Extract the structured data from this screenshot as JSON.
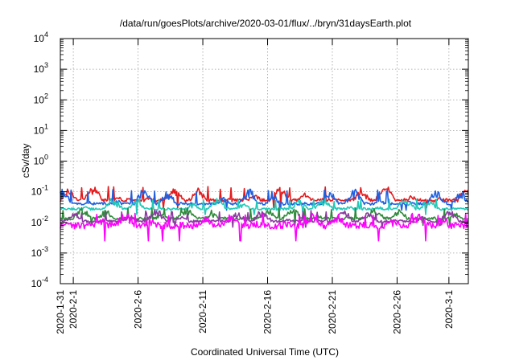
{
  "chart_data": {
    "type": "line",
    "title": "/data/run/goesPlots/archive/2020-03-01/flux/../bryn/31daysEarth.plot",
    "xlabel": "Coordinated Universal Time (UTC)",
    "ylabel": "cSv/day",
    "y_scale": "log",
    "ylim": [
      0.0001,
      10000
    ],
    "xlim": [
      "2020-01-31",
      "2020-03-02T12:00"
    ],
    "grid": true,
    "y_ticks": [
      {
        "base": "10",
        "exp": "-4",
        "value": 0.0001
      },
      {
        "base": "10",
        "exp": "-3",
        "value": 0.001
      },
      {
        "base": "10",
        "exp": "-2",
        "value": 0.01
      },
      {
        "base": "10",
        "exp": "-1",
        "value": 0.1
      },
      {
        "base": "10",
        "exp": "0",
        "value": 1
      },
      {
        "base": "10",
        "exp": "1",
        "value": 10
      },
      {
        "base": "10",
        "exp": "2",
        "value": 100
      },
      {
        "base": "10",
        "exp": "3",
        "value": 1000
      },
      {
        "base": "10",
        "exp": "4",
        "value": 10000
      }
    ],
    "x_ticks": [
      {
        "label": "2020-1-31",
        "date": "2020-01-31"
      },
      {
        "label": "2020-2-1",
        "date": "2020-02-01"
      },
      {
        "label": "2020-2-6",
        "date": "2020-02-06"
      },
      {
        "label": "2020-2-11",
        "date": "2020-02-11"
      },
      {
        "label": "2020-2-16",
        "date": "2020-02-16"
      },
      {
        "label": "2020-2-21",
        "date": "2020-02-21"
      },
      {
        "label": "2020-2-26",
        "date": "2020-02-26"
      },
      {
        "label": "2020-3-1",
        "date": "2020-03-01"
      }
    ],
    "series": [
      {
        "color": "#e41a1c",
        "typical": 0.06,
        "peak": 0.15,
        "floor": 0.03
      },
      {
        "color": "#1f5fe0",
        "typical": 0.045,
        "peak": 0.12,
        "floor": 0.025
      },
      {
        "color": "#22c9b8",
        "typical": 0.03,
        "peak": 0.06,
        "floor": 0.018
      },
      {
        "color": "#2e8b3a",
        "typical": 0.015,
        "peak": 0.03,
        "floor": 0.008
      },
      {
        "color": "#8a3aa0",
        "typical": 0.012,
        "peak": 0.025,
        "floor": 0.007
      },
      {
        "color": "#ff00ff",
        "typical": 0.01,
        "peak": 0.02,
        "floor": 0.0025
      }
    ]
  }
}
